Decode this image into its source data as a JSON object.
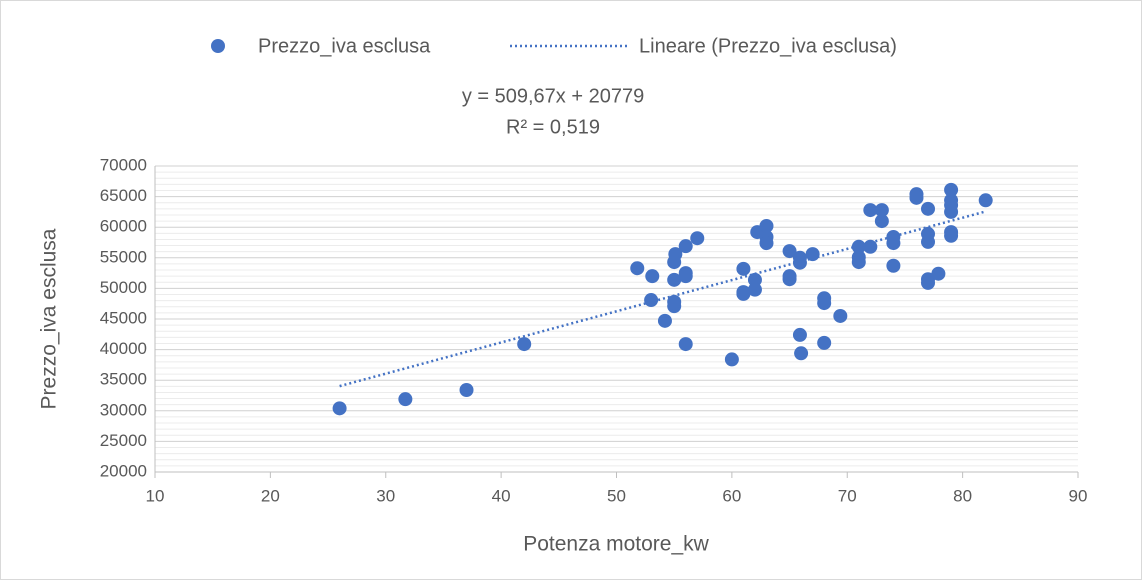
{
  "chart_data": {
    "type": "scatter",
    "x_label": "Potenza motore_kw",
    "y_label": "Prezzo_iva esclusa",
    "xlim": [
      10,
      90
    ],
    "xticks": [
      10,
      20,
      30,
      40,
      50,
      60,
      70,
      80,
      90
    ],
    "ylim": [
      20000,
      70000
    ],
    "yticks": [
      20000,
      25000,
      30000,
      35000,
      40000,
      45000,
      50000,
      55000,
      60000,
      65000,
      70000
    ],
    "grid": true,
    "minor_grid": true,
    "legend": "top",
    "series": [
      {
        "name": "Prezzo_iva esclusa",
        "color": "#4472c4",
        "x": [
          26,
          31.7,
          37,
          42,
          51.8,
          53.1,
          53,
          54.2,
          55.1,
          55,
          55,
          55,
          55,
          56,
          56,
          56,
          56,
          57,
          60,
          61,
          61,
          61,
          62.2,
          62,
          62,
          63,
          63,
          63,
          65,
          65,
          65,
          65.9,
          65.9,
          65.9,
          66,
          67,
          68,
          68,
          68,
          69.4,
          71,
          71,
          71,
          72,
          72,
          73,
          73,
          74,
          74,
          74,
          76,
          76,
          77,
          77,
          77,
          77,
          77,
          77.9,
          79,
          79,
          79,
          79,
          79,
          79,
          82
        ],
        "values": [
          30400,
          31900,
          33400,
          40900,
          53300,
          52000,
          48100,
          44700,
          55600,
          54300,
          51400,
          47800,
          47100,
          56900,
          52500,
          52000,
          40900,
          58200,
          38400,
          53200,
          49400,
          49100,
          59200,
          51400,
          49800,
          60200,
          58400,
          57400,
          56100,
          52000,
          51500,
          55000,
          54200,
          42400,
          39400,
          55600,
          48400,
          47600,
          41100,
          45500,
          56800,
          55100,
          54300,
          62800,
          56800,
          62800,
          61000,
          58400,
          57400,
          53700,
          65400,
          64800,
          63000,
          58900,
          57600,
          51500,
          50900,
          52400,
          66100,
          64400,
          63600,
          62500,
          59200,
          58600,
          64400
        ]
      }
    ],
    "trendline": {
      "name": "Lineare (Prezzo_iva esclusa)",
      "color": "#4472c4",
      "slope": 509.67,
      "intercept": 20779,
      "x": [
        26,
        82
      ],
      "equation": "y = 509,67x + 20779",
      "r2": "R² = 0,519"
    }
  }
}
